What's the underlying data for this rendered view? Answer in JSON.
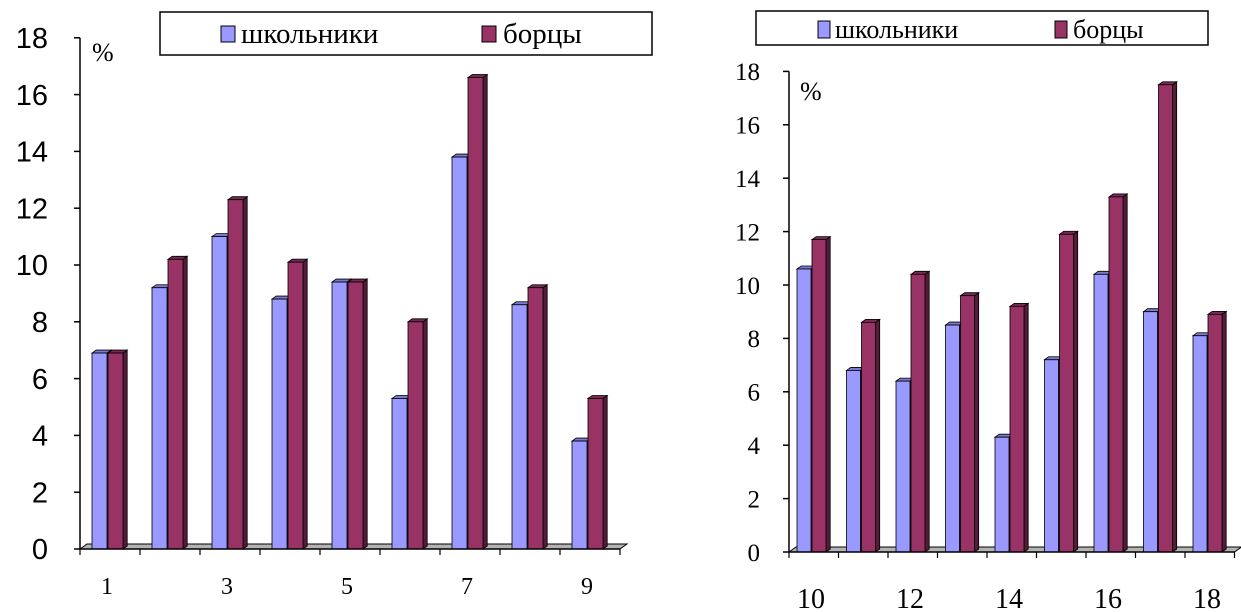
{
  "chart_data": [
    {
      "type": "bar",
      "unit_label": "%",
      "categories": [
        "1",
        "2",
        "3",
        "4",
        "5",
        "6",
        "7",
        "8",
        "9"
      ],
      "x_tick_labels": [
        "1",
        "3",
        "5",
        "7",
        "9"
      ],
      "ylim": [
        0,
        18
      ],
      "y_tick_labels": [
        "0",
        "2",
        "4",
        "6",
        "8",
        "10",
        "12",
        "14",
        "16",
        "18"
      ],
      "grid": false,
      "legend_position": "top",
      "series": [
        {
          "name": "школьники",
          "color": "#9999ff",
          "values": [
            6.9,
            9.2,
            11.0,
            8.8,
            9.4,
            5.3,
            13.8,
            8.6,
            3.8
          ]
        },
        {
          "name": "борцы",
          "color": "#993366",
          "values": [
            6.9,
            10.2,
            12.3,
            10.1,
            9.4,
            8.0,
            16.6,
            9.2,
            5.3
          ]
        }
      ]
    },
    {
      "type": "bar",
      "unit_label": "%",
      "categories": [
        "10",
        "11",
        "12",
        "13",
        "14",
        "15",
        "16",
        "17",
        "18"
      ],
      "x_tick_labels": [
        "10",
        "12",
        "14",
        "16",
        "18"
      ],
      "ylim": [
        0,
        18
      ],
      "y_tick_labels": [
        "0",
        "2",
        "4",
        "6",
        "8",
        "10",
        "12",
        "14",
        "16",
        "18"
      ],
      "grid": false,
      "legend_position": "top",
      "series": [
        {
          "name": "школьники",
          "color": "#9999ff",
          "values": [
            10.6,
            6.8,
            6.4,
            8.5,
            4.3,
            7.2,
            10.4,
            9.0,
            8.1
          ]
        },
        {
          "name": "борцы",
          "color": "#993366",
          "values": [
            11.7,
            8.6,
            10.4,
            9.6,
            9.2,
            11.9,
            13.3,
            17.5,
            8.9
          ]
        }
      ]
    }
  ]
}
